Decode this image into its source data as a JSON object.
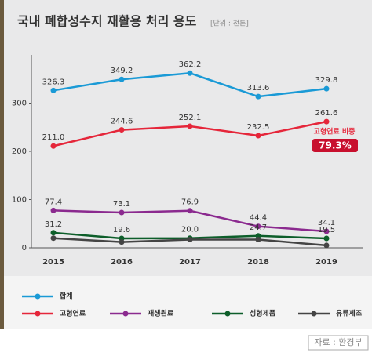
{
  "chart_data": {
    "type": "line",
    "title": "국내 폐합성수지 재활용 처리 용도",
    "subtitle": "[단위 : 천톤]",
    "categories": [
      "2015",
      "2016",
      "2017",
      "2018",
      "2019"
    ],
    "series": [
      {
        "name": "합계",
        "color": "#1a9ad6",
        "values": [
          326.3,
          349.2,
          362.2,
          313.6,
          329.8
        ],
        "value_labels": [
          "326.3",
          "349.2",
          "362.2",
          "313.6",
          "329.8"
        ]
      },
      {
        "name": "고형연료",
        "color": "#e5263a",
        "values": [
          211.0,
          244.6,
          252.1,
          232.5,
          261.6
        ],
        "value_labels": [
          "211.0",
          "244.6",
          "252.1",
          "232.5",
          "261.6"
        ]
      },
      {
        "name": "재생원료",
        "color": "#8b2a8f",
        "values": [
          77.4,
          73.1,
          76.9,
          44.4,
          34.1
        ],
        "value_labels": [
          "77.4",
          "73.1",
          "76.9",
          "44.4",
          "34.1"
        ]
      },
      {
        "name": "성형제품",
        "color": "#0d5e2a",
        "values": [
          31.2,
          19.6,
          20.0,
          24.7,
          19.5
        ],
        "value_labels": [
          "31.2",
          "19.6",
          "20.0",
          "24.7",
          "19.5"
        ]
      },
      {
        "name": "유류제조",
        "color": "#444444",
        "values": [
          20,
          12,
          17,
          17,
          5
        ]
      }
    ],
    "ylim": [
      0,
      400
    ],
    "yticks": [
      0,
      100,
      200,
      300
    ],
    "annotations": [
      "고형연료 비중",
      "79.3%"
    ],
    "source": "자료 : 환경부"
  }
}
